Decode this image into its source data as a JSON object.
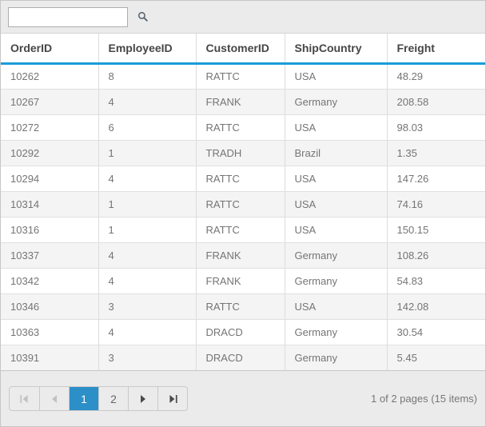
{
  "toolbar": {
    "search_value": "",
    "search_placeholder": "",
    "search_icon": "search-icon"
  },
  "grid": {
    "columns": [
      "OrderID",
      "EmployeeID",
      "CustomerID",
      "ShipCountry",
      "Freight"
    ],
    "rows": [
      [
        "10262",
        "8",
        "RATTC",
        "USA",
        "48.29"
      ],
      [
        "10267",
        "4",
        "FRANK",
        "Germany",
        "208.58"
      ],
      [
        "10272",
        "6",
        "RATTC",
        "USA",
        "98.03"
      ],
      [
        "10292",
        "1",
        "TRADH",
        "Brazil",
        "1.35"
      ],
      [
        "10294",
        "4",
        "RATTC",
        "USA",
        "147.26"
      ],
      [
        "10314",
        "1",
        "RATTC",
        "USA",
        "74.16"
      ],
      [
        "10316",
        "1",
        "RATTC",
        "USA",
        "150.15"
      ],
      [
        "10337",
        "4",
        "FRANK",
        "Germany",
        "108.26"
      ],
      [
        "10342",
        "4",
        "FRANK",
        "Germany",
        "54.83"
      ],
      [
        "10346",
        "3",
        "RATTC",
        "USA",
        "142.08"
      ],
      [
        "10363",
        "4",
        "DRACD",
        "Germany",
        "30.54"
      ],
      [
        "10391",
        "3",
        "DRACD",
        "Germany",
        "5.45"
      ]
    ]
  },
  "pager": {
    "pages": [
      "1",
      "2"
    ],
    "current_page": "1",
    "info": "1 of 2 pages (15 items)",
    "icons": [
      "seek-first-icon",
      "arrow-left-icon",
      "arrow-right-icon",
      "seek-last-icon"
    ]
  },
  "colors": {
    "accent_line": "#1a9dd9",
    "selected_page_bg": "#2c8fc8",
    "toolbar_bg": "#ebebeb",
    "stripe_bg": "#f4f4f4",
    "header_text": "#464646",
    "cell_text": "#757575",
    "disabled_icon": "#c2c2c2",
    "enabled_icon": "#4a4a4a"
  }
}
